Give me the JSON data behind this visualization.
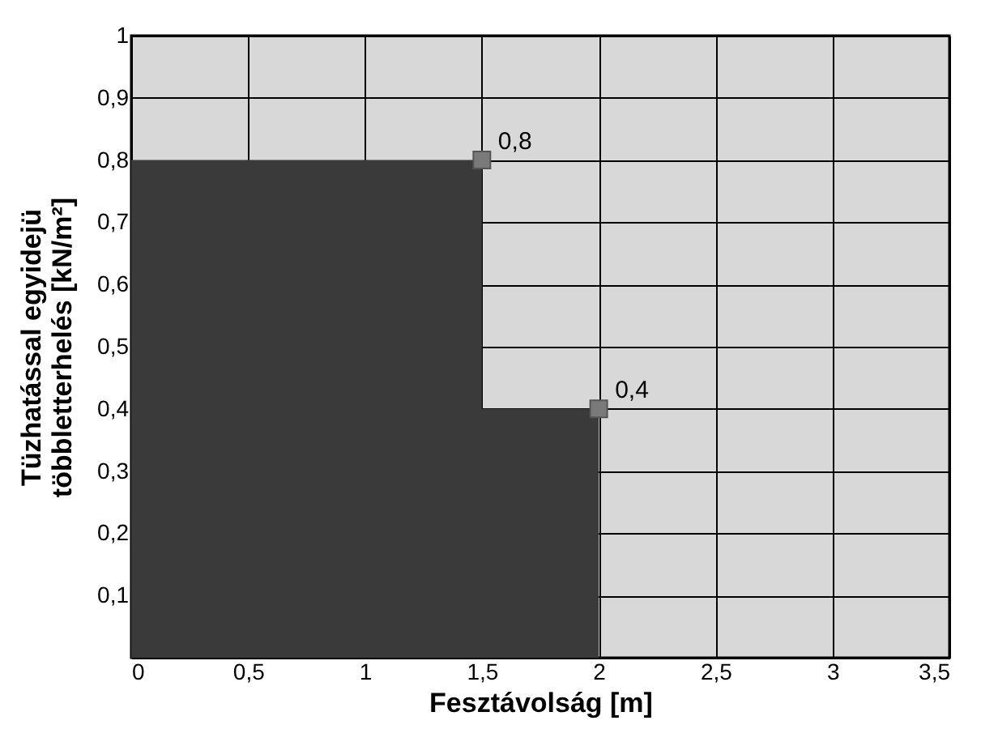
{
  "chart_data": {
    "type": "area",
    "xlabel": "Fesztávolság [m]",
    "ylabel": "Tüzhatással egyidejü\ntöbbletterhelés [kN/m²]",
    "series": [
      {
        "color": "#3a3a3a",
        "x": [
          0,
          1.5,
          1.5,
          2
        ],
        "values": [
          0.8,
          0.8,
          0.4,
          0.4
        ]
      },
      {
        "type": "scatter",
        "marker": "square",
        "color": "#7a7a7a",
        "x": [
          1.5,
          2
        ],
        "values": [
          0.8,
          0.4
        ],
        "value_labels": [
          "0,8",
          "0,4"
        ]
      }
    ],
    "grid": true,
    "xlim": [
      0,
      3.5
    ],
    "xticks": [
      0,
      {
        "value": 0.5,
        "label": "0,5"
      },
      1,
      {
        "value": 1.5,
        "label": "1,5"
      },
      2,
      {
        "value": 2.5,
        "label": "2,5"
      },
      3,
      {
        "value": 3.5,
        "label": "3,5"
      }
    ],
    "ylim": [
      0,
      1
    ],
    "yticks": [
      {
        "value": 0,
        "label": null
      },
      {
        "value": 0.1,
        "label": "0,1"
      },
      {
        "value": 0.2,
        "label": "0,2"
      },
      {
        "value": 0.3,
        "label": "0,3"
      },
      {
        "value": 0.4,
        "label": "0,4"
      },
      {
        "value": 0.5,
        "label": "0,5"
      },
      {
        "value": 0.6,
        "label": "0,6"
      },
      {
        "value": 0.7,
        "label": "0,7"
      },
      {
        "value": 0.8,
        "label": "0,8"
      },
      {
        "value": 0.9,
        "label": "0,9"
      },
      1
    ]
  }
}
